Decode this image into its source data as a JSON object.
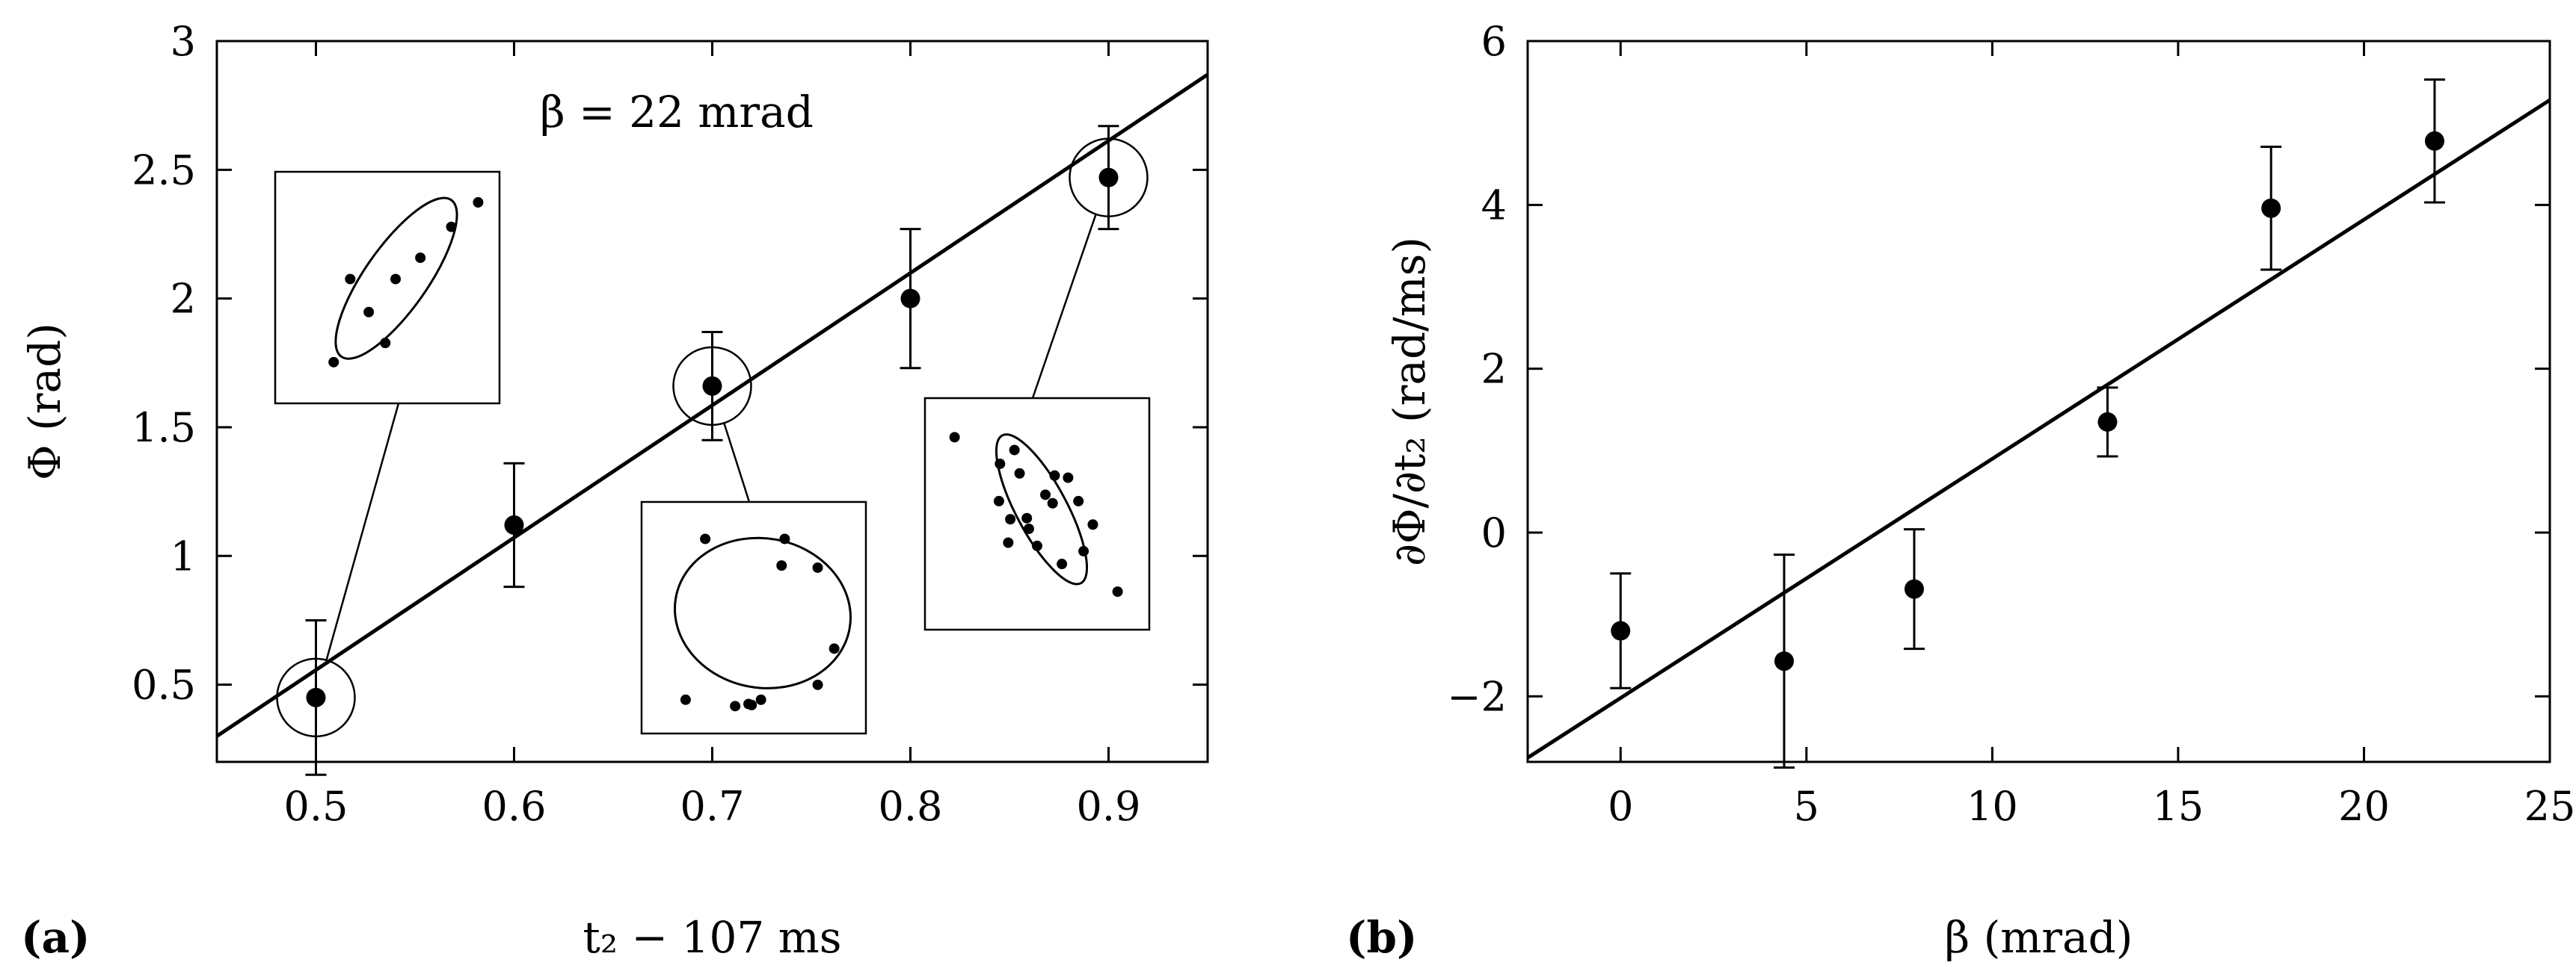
{
  "chart_data": [
    {
      "type": "scatter",
      "panel_label": "(a)",
      "annotation": "β = 22 mrad",
      "xlabel": "t₂ − 107 ms",
      "ylabel": "Φ (rad)",
      "xlim": [
        0.45,
        0.95
      ],
      "ylim": [
        0.2,
        3.0
      ],
      "xticks": [
        0.5,
        0.6,
        0.7,
        0.8,
        0.9
      ],
      "yticks": [
        0.5,
        1,
        1.5,
        2,
        2.5,
        3
      ],
      "xtick_labels": [
        "0.5",
        "0.6",
        "0.7",
        "0.8",
        "0.9"
      ],
      "ytick_labels": [
        "0.5",
        "1",
        "1.5",
        "2",
        "2.5",
        "3"
      ],
      "series": [
        {
          "x": [
            0.5,
            0.6,
            0.7,
            0.8,
            0.9
          ],
          "y": [
            0.45,
            1.12,
            1.66,
            2.0,
            2.47
          ],
          "yerr": [
            0.3,
            0.24,
            0.21,
            0.27,
            0.2
          ]
        }
      ],
      "fit_line": {
        "x": [
          0.45,
          0.95
        ],
        "y": [
          0.3,
          2.87
        ]
      },
      "highlighted_x": [
        0.5,
        0.7,
        0.9
      ],
      "insets": [
        {
          "points": [
            [
              -0.52,
              -0.7
            ],
            [
              -0.18,
              -0.23
            ],
            [
              0.08,
              0.08
            ],
            [
              0.32,
              0.28
            ],
            [
              0.62,
              0.57
            ],
            [
              0.88,
              0.8
            ],
            [
              -0.36,
              0.08
            ],
            [
              -0.02,
              -0.52
            ]
          ]
        },
        {
          "points": [
            [
              -0.47,
              0.74
            ],
            [
              0.3,
              0.74
            ],
            [
              0.27,
              0.49
            ],
            [
              0.62,
              0.47
            ],
            [
              0.78,
              -0.29
            ],
            [
              0.62,
              -0.63
            ],
            [
              -0.66,
              -0.77
            ],
            [
              -0.18,
              -0.83
            ],
            [
              -0.05,
              -0.81
            ],
            [
              0.07,
              -0.77
            ],
            [
              -0.02,
              -0.82
            ]
          ]
        },
        {
          "points": [
            [
              -0.8,
              0.72
            ],
            [
              -0.22,
              0.6
            ],
            [
              -0.36,
              0.47
            ],
            [
              -0.17,
              0.38
            ],
            [
              0.17,
              0.36
            ],
            [
              0.3,
              0.34
            ],
            [
              -0.37,
              0.12
            ],
            [
              0.08,
              0.18
            ],
            [
              0.15,
              0.1
            ],
            [
              0.4,
              0.12
            ],
            [
              -0.26,
              -0.05
            ],
            [
              -0.1,
              -0.04
            ],
            [
              0.54,
              -0.1
            ],
            [
              -0.28,
              -0.27
            ],
            [
              0.0,
              -0.3
            ],
            [
              0.45,
              -0.35
            ],
            [
              0.24,
              -0.47
            ],
            [
              0.78,
              -0.73
            ],
            [
              -0.08,
              -0.14
            ]
          ]
        }
      ]
    },
    {
      "type": "scatter",
      "panel_label": "(b)",
      "xlabel": "β (mrad)",
      "ylabel": "∂Φ/∂t₂ (rad/ms)",
      "xlim": [
        -2.5,
        25
      ],
      "ylim": [
        -2.8,
        6
      ],
      "xticks": [
        0,
        5,
        10,
        15,
        20,
        25
      ],
      "yticks": [
        -2,
        0,
        2,
        4,
        6
      ],
      "xtick_labels": [
        "0",
        "5",
        "10",
        "15",
        "20",
        "25"
      ],
      "ytick_labels": [
        "−2",
        "0",
        "2",
        "4",
        "6"
      ],
      "series": [
        {
          "x": [
            0.0,
            4.4,
            7.9,
            13.1,
            17.5,
            21.9
          ],
          "y": [
            -1.2,
            -1.57,
            -0.69,
            1.35,
            3.96,
            4.78
          ],
          "yerr": [
            0.7,
            1.3,
            0.73,
            0.42,
            0.75,
            0.75
          ]
        }
      ],
      "fit_line": {
        "x": [
          -2.5,
          25
        ],
        "y": [
          -2.75,
          5.28
        ]
      }
    }
  ]
}
